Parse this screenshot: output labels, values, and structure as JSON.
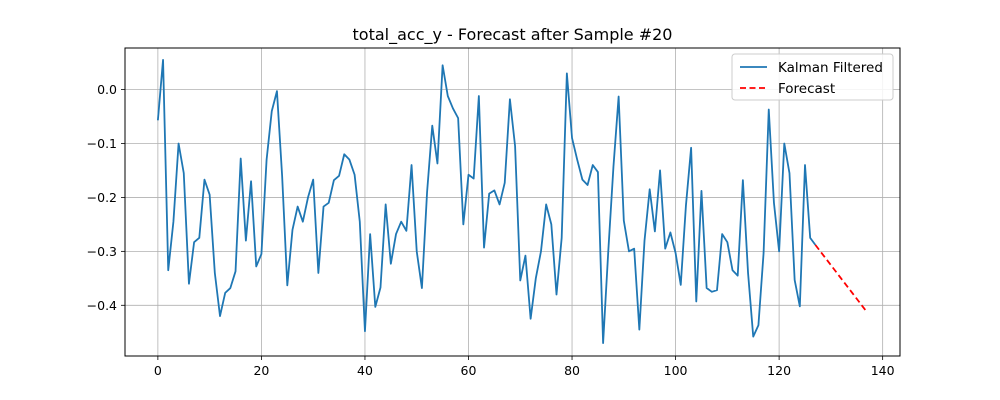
{
  "chart_data": {
    "type": "line",
    "title": "total_acc_y - Forecast after Sample #20",
    "xlabel": "",
    "ylabel": "",
    "xlim": [
      -6.35,
      143.35
    ],
    "ylim": [
      -0.494,
      0.077
    ],
    "xticks": [
      0,
      20,
      40,
      60,
      80,
      100,
      120,
      140
    ],
    "xtick_labels": [
      "0",
      "20",
      "40",
      "60",
      "80",
      "100",
      "120",
      "140"
    ],
    "yticks": [
      0.0,
      -0.1,
      -0.2,
      -0.3,
      -0.4
    ],
    "ytick_labels": [
      "0.0",
      "−0.1",
      "−0.2",
      "−0.3",
      "−0.4"
    ],
    "grid": true,
    "legend_position": "top-right",
    "series": [
      {
        "name": "Kalman Filtered",
        "color": "#1f77b4",
        "style": "solid",
        "x": [
          0,
          1,
          2,
          3,
          4,
          5,
          6,
          7,
          8,
          9,
          10,
          11,
          12,
          13,
          14,
          15,
          16,
          17,
          18,
          19,
          20,
          21,
          22,
          23,
          24,
          25,
          26,
          27,
          28,
          29,
          30,
          31,
          32,
          33,
          34,
          35,
          36,
          37,
          38,
          39,
          40,
          41,
          42,
          43,
          44,
          45,
          46,
          47,
          48,
          49,
          50,
          51,
          52,
          53,
          54,
          55,
          56,
          57,
          58,
          59,
          60,
          61,
          62,
          63,
          64,
          65,
          66,
          67,
          68,
          69,
          70,
          71,
          72,
          73,
          74,
          75,
          76,
          77,
          78,
          79,
          80,
          81,
          82,
          83,
          84,
          85,
          86,
          87,
          88,
          89,
          90,
          91,
          92,
          93,
          94,
          95,
          96,
          97,
          98,
          99,
          100,
          101,
          102,
          103,
          104,
          105,
          106,
          107,
          108,
          109,
          110,
          111,
          112,
          113,
          114,
          115,
          116,
          117,
          118,
          119,
          120,
          121,
          122,
          123,
          124,
          125,
          126,
          127
        ],
        "y": [
          -0.057,
          0.055,
          -0.335,
          -0.245,
          -0.1,
          -0.155,
          -0.36,
          -0.283,
          -0.275,
          -0.167,
          -0.195,
          -0.34,
          -0.42,
          -0.377,
          -0.368,
          -0.337,
          -0.128,
          -0.28,
          -0.17,
          -0.328,
          -0.305,
          -0.13,
          -0.04,
          -0.003,
          -0.16,
          -0.363,
          -0.26,
          -0.217,
          -0.245,
          -0.2,
          -0.167,
          -0.34,
          -0.217,
          -0.21,
          -0.168,
          -0.16,
          -0.12,
          -0.13,
          -0.158,
          -0.245,
          -0.448,
          -0.268,
          -0.403,
          -0.367,
          -0.213,
          -0.323,
          -0.268,
          -0.245,
          -0.262,
          -0.14,
          -0.3,
          -0.368,
          -0.19,
          -0.067,
          -0.137,
          0.045,
          -0.012,
          -0.035,
          -0.053,
          -0.25,
          -0.158,
          -0.165,
          -0.012,
          -0.293,
          -0.193,
          -0.187,
          -0.213,
          -0.173,
          -0.018,
          -0.105,
          -0.354,
          -0.308,
          -0.425,
          -0.35,
          -0.3,
          -0.213,
          -0.25,
          -0.38,
          -0.275,
          0.03,
          -0.09,
          -0.13,
          -0.167,
          -0.177,
          -0.14,
          -0.153,
          -0.47,
          -0.3,
          -0.143,
          -0.013,
          -0.243,
          -0.3,
          -0.295,
          -0.445,
          -0.28,
          -0.185,
          -0.263,
          -0.15,
          -0.295,
          -0.265,
          -0.303,
          -0.362,
          -0.215,
          -0.108,
          -0.393,
          -0.188,
          -0.368,
          -0.375,
          -0.372,
          -0.268,
          -0.283,
          -0.335,
          -0.345,
          -0.168,
          -0.34,
          -0.458,
          -0.437,
          -0.303,
          -0.037,
          -0.21,
          -0.3,
          -0.1,
          -0.155,
          -0.353,
          -0.402,
          -0.14,
          -0.275,
          -0.288
        ]
      },
      {
        "name": "Forecast",
        "color": "#ff0000",
        "style": "dashed",
        "x": [
          127,
          137
        ],
        "y": [
          -0.288,
          -0.413
        ]
      }
    ]
  }
}
